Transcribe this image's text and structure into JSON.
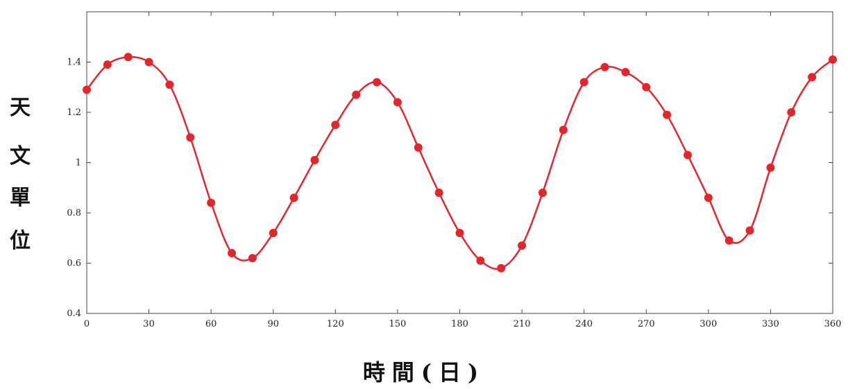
{
  "chart_data": {
    "type": "line",
    "xlabel": "時間(日)",
    "ylabel": "天文單位",
    "ylabel_chars": [
      "天",
      "文",
      "單",
      "位"
    ],
    "xlim": [
      0,
      360
    ],
    "ylim": [
      0.4,
      1.6
    ],
    "x_ticks": [
      0,
      30,
      60,
      90,
      120,
      150,
      180,
      210,
      240,
      270,
      300,
      330,
      360
    ],
    "x_tick_labels": [
      "0",
      "30",
      "60",
      "90",
      "120",
      "150",
      "180",
      "210",
      "240",
      "270",
      "300",
      "330",
      "360"
    ],
    "y_ticks": [
      0.4,
      0.6,
      0.8,
      1.0,
      1.2,
      1.4
    ],
    "y_tick_labels": [
      "0.4",
      "0.6",
      "0.8",
      "1",
      "1.2",
      "1.4"
    ],
    "grid": false,
    "colors": {
      "line": "#e4262b",
      "marker": "#e4262b",
      "axis": "#444444"
    },
    "series": [
      {
        "style": "line+markers",
        "x": [
          0,
          10,
          20,
          30,
          40,
          50,
          60,
          70,
          80,
          90,
          100,
          110,
          120,
          130,
          140,
          150,
          160,
          170,
          180,
          190,
          200,
          210,
          220,
          230,
          240,
          250,
          260,
          270,
          280,
          290,
          300,
          310,
          320,
          330,
          340,
          350,
          360
        ],
        "y": [
          1.29,
          1.39,
          1.42,
          1.4,
          1.31,
          1.1,
          0.84,
          0.64,
          0.62,
          0.72,
          0.86,
          1.01,
          1.15,
          1.27,
          1.32,
          1.24,
          1.06,
          0.88,
          0.72,
          0.61,
          0.58,
          0.67,
          0.88,
          1.13,
          1.32,
          1.38,
          1.36,
          1.3,
          1.19,
          1.03,
          0.86,
          0.69,
          0.73,
          0.98,
          1.2,
          1.34,
          1.41
        ]
      }
    ]
  }
}
